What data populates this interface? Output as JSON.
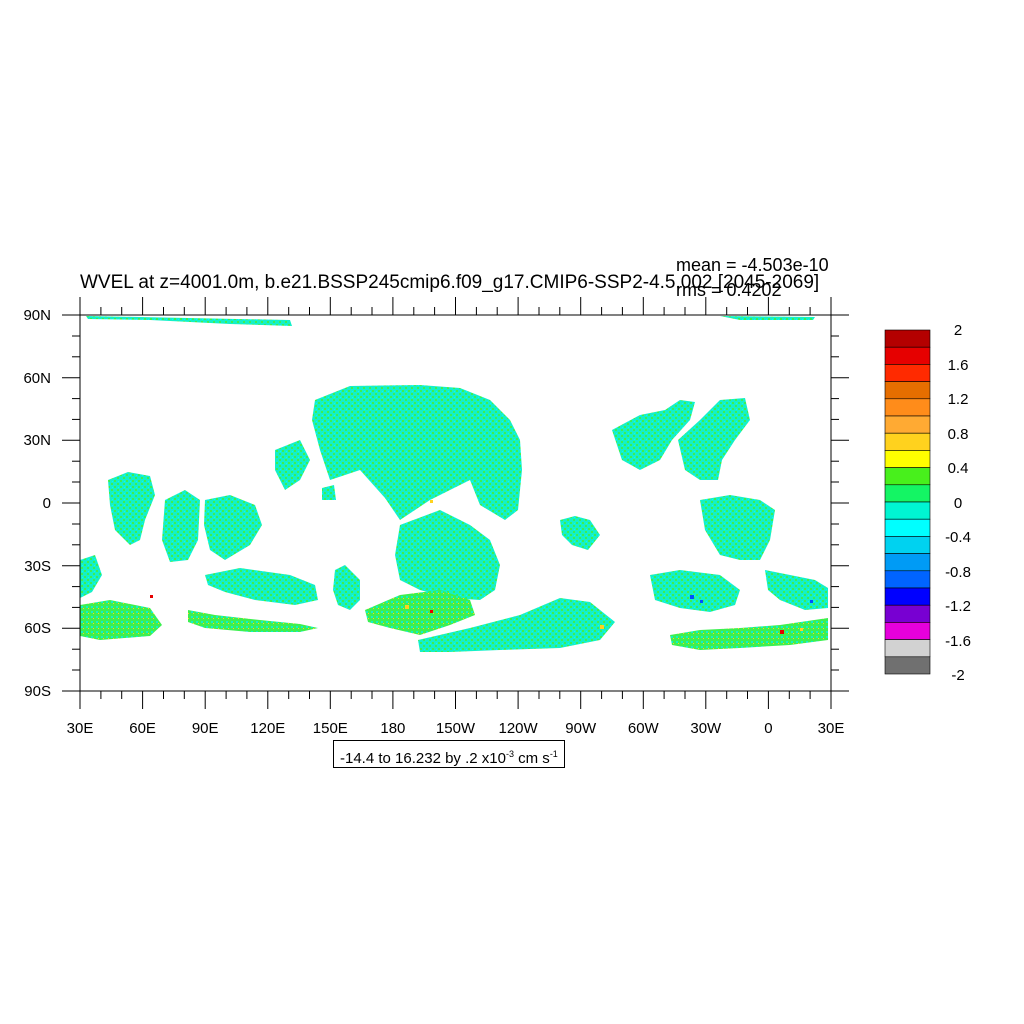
{
  "title": "WVEL at z=4001.0m, b.e21.BSSP245cmip6.f09_g17.CMIP6-SSP2-4.5.002 [2045-2069]",
  "stats": {
    "mean": "mean = -4.503e-10",
    "rms": "rms = 0.4202"
  },
  "axes": {
    "y_ticks": [
      "90N",
      "60N",
      "30N",
      "0",
      "30S",
      "60S",
      "90S"
    ],
    "x_ticks": [
      "30E",
      "60E",
      "90E",
      "120E",
      "150E",
      "180",
      "150W",
      "120W",
      "90W",
      "60W",
      "30W",
      "0",
      "30E"
    ]
  },
  "info": {
    "prefix": "-14.4 to 16.232 by .2 x10",
    "exp": "-3",
    "units": " cm s",
    "units_exp": "-1"
  },
  "colorbar": {
    "labels": [
      "2",
      "1.6",
      "1.2",
      "0.8",
      "0.4",
      "0",
      "-0.4",
      "-0.8",
      "-1.2",
      "-1.6",
      "-2"
    ],
    "colors": [
      "#b40000",
      "#e60000",
      "#ff2a00",
      "#e66e00",
      "#ff8c1a",
      "#ffaa33",
      "#ffd21e",
      "#ffff00",
      "#48f01c",
      "#14f564",
      "#00f5d2",
      "#00ffff",
      "#00d2f0",
      "#009bf5",
      "#0064ff",
      "#0000ff",
      "#7800d2",
      "#e600dc",
      "#d2d2d2",
      "#707070"
    ]
  },
  "colors": {
    "field_main": "#14f0c8",
    "field_green": "#3cf050",
    "field_yellow": "#ffd21e",
    "field_blue": "#0050ff",
    "field_red": "#e60000"
  }
}
